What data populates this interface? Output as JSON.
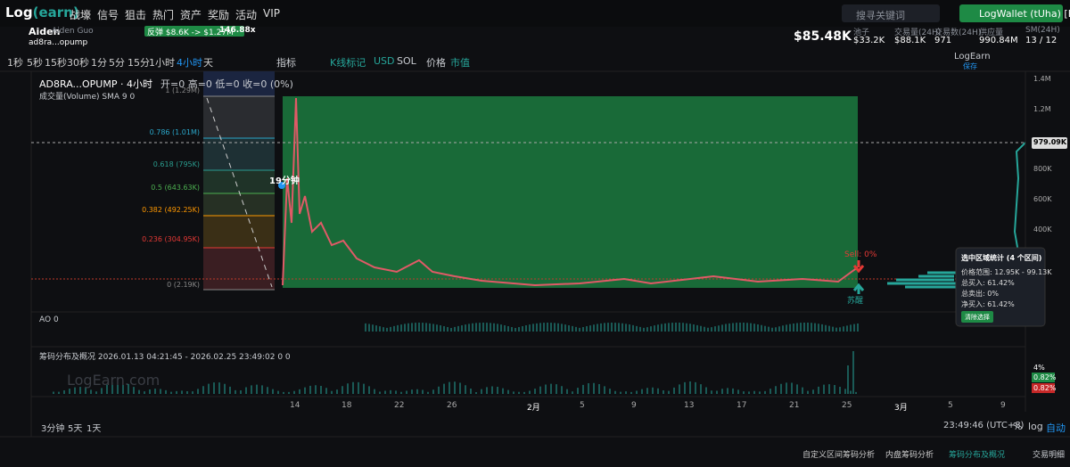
{
  "nav": {
    "logo": "Log",
    "logo_accent": "(earn)",
    "menu": [
      "战壕",
      "信号",
      "狙击",
      "热门",
      "资产",
      "奖励",
      "活动",
      "VIP"
    ],
    "search_placeholder": "搜寻关键词",
    "wallet_button": "LogWallet (tUha) [EOA]"
  },
  "token": {
    "user": "Aiden",
    "user_full": "Aiden Guo",
    "symbol": "ad8ra...opump",
    "rebound": "反弹 $8.6K -> $1.27M",
    "multiple": "146.88x",
    "price": "$85.48K",
    "stats": [
      {
        "label": "池子",
        "value": "$33.2K"
      },
      {
        "label": "交易量(24H)",
        "value": "$88.1K"
      },
      {
        "label": "交易数(24H)",
        "value": "971"
      },
      {
        "label": "供应量",
        "value": "990.84M"
      },
      {
        "label": "SM(24H)",
        "value": "13 / 12"
      }
    ]
  },
  "toolbar": {
    "intervals": [
      "1秒",
      "5秒",
      "15秒",
      "30秒",
      "1分",
      "5分",
      "15分",
      "1小时",
      "4小时",
      "天"
    ],
    "indicator": "指标",
    "kline_mark": "K线标记",
    "usd": "USD",
    "sol": "SOL",
    "price": "价格",
    "mcap": "市值",
    "brand": "LogEarn",
    "save": "保存"
  },
  "chart": {
    "title": "AD8RA...OPUMP · 4小时",
    "ohlc": "开=0 高=0 低=0 收=0 (0%)",
    "volume_label": "成交量(Volume) SMA 9 0",
    "fib_levels": [
      "1 (1.29M)",
      "0.786 (1.01M)",
      "0.618 (795K)",
      "0.5 (643.63K)",
      "0.382 (492.25K)",
      "0.236 (304.95K)",
      "0 (2.19K)"
    ],
    "price_axis": [
      "1.4M",
      "1.2M",
      "979.09K",
      "800K",
      "600K",
      "400K"
    ],
    "dates": [
      "14",
      "18",
      "22",
      "26",
      "2月",
      "5",
      "9",
      "13",
      "17",
      "21",
      "25",
      "3月",
      "5",
      "9"
    ],
    "marker_time": "19分钟",
    "sell_label": "Sell: 0%",
    "wake_label": "苏醒",
    "tooltip": {
      "title": "选中区域统计 (4 个区间)",
      "lines": [
        "价格范围: 12.95K - 99.13K",
        "总买入: 61.42%",
        "总卖出: 0%",
        "净买入: 61.42%"
      ],
      "button": "清除选择"
    },
    "ao_label": "AO 0",
    "dist_label": "筹码分布及概况 2026.01.13 04:21:45 - 2026.02.25 23:49:02 0 0",
    "dist_axis": [
      "4%",
      "0.82%",
      "0.82%"
    ],
    "watermark": "LogEarn.com"
  },
  "bottom": {
    "ranges": [
      "3分钟",
      "5天",
      "1天"
    ],
    "clock": "23:49:46 (UTC+8)",
    "percent": "%",
    "log": "log",
    "auto": "自动"
  },
  "footer": {
    "tabs": [
      "自定义区间筹码分析",
      "内盘筹码分析",
      "筹码分布及概况"
    ],
    "trades": "交易明细"
  }
}
